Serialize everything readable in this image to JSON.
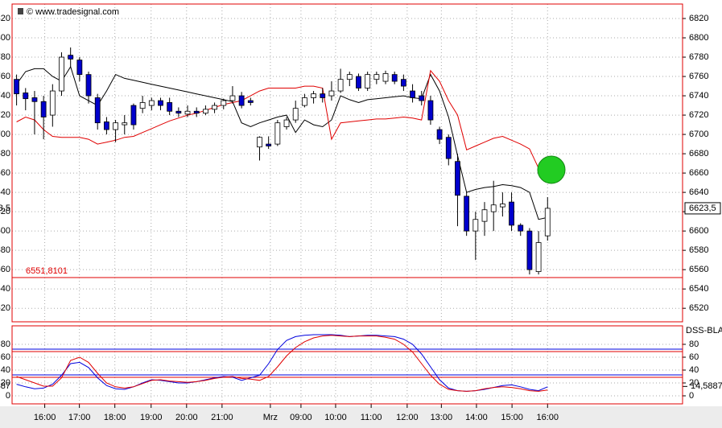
{
  "chart_data": [
    {
      "type": "candlestick",
      "watermark": "© www.tradesignal.com",
      "xlim": [
        -0.5,
        74
      ],
      "ylim": [
        6506,
        6835
      ],
      "yticks": [
        6520,
        6540,
        6560,
        6580,
        6600,
        6620,
        6640,
        6660,
        6680,
        6700,
        6720,
        6740,
        6760,
        6780,
        6800,
        6820
      ],
      "xticks": [
        {
          "value": 3.13,
          "label": "16:00"
        },
        {
          "value": 6.98,
          "label": "17:00"
        },
        {
          "value": 10.92,
          "label": "18:00"
        },
        {
          "value": 14.95,
          "label": "19:00"
        },
        {
          "value": 18.89,
          "label": "20:00"
        },
        {
          "value": 22.83,
          "label": "21:00"
        },
        {
          "value": 28.2,
          "label": "Mrz"
        },
        {
          "value": 31.6,
          "label": "09:00"
        },
        {
          "value": 35.45,
          "label": "10:00"
        },
        {
          "value": 39.4,
          "label": "11:00"
        },
        {
          "value": 43.4,
          "label": "12:00"
        },
        {
          "value": 47.2,
          "label": "13:00"
        },
        {
          "value": 51.1,
          "label": "14:00"
        },
        {
          "value": 55.05,
          "label": "15:00"
        },
        {
          "value": 59,
          "label": "16:00"
        }
      ],
      "grid": true,
      "up_color": "#ffffff",
      "down_color": "#0000cc",
      "open": [
        6757,
        6743,
        6738,
        6734,
        6720,
        6745,
        6782,
        6777,
        6762,
        6738,
        6713,
        6705,
        6710,
        6730,
        6727,
        6730,
        6735,
        6733,
        6724,
        6721,
        6724,
        6722,
        6726,
        6730,
        6735,
        6740,
        6735,
        6687,
        6690,
        6690,
        6708,
        6715,
        6730,
        6738,
        6742,
        6740,
        6745,
        6757,
        6760,
        6748,
        6757,
        6755,
        6762,
        6757,
        6745,
        6740,
        6735,
        6705,
        6697,
        6672,
        6636,
        6600,
        6610,
        6620,
        6625,
        6630,
        6606,
        6600,
        6558,
        6595
      ],
      "high": [
        6762,
        6748,
        6745,
        6740,
        6752,
        6785,
        6790,
        6780,
        6765,
        6742,
        6718,
        6715,
        6720,
        6732,
        6740,
        6738,
        6738,
        6738,
        6728,
        6730,
        6728,
        6730,
        6733,
        6737,
        6750,
        6744,
        6738,
        6698,
        6698,
        6715,
        6718,
        6735,
        6742,
        6745,
        6748,
        6755,
        6768,
        6765,
        6763,
        6765,
        6765,
        6766,
        6765,
        6762,
        6752,
        6745,
        6740,
        6708,
        6700,
        6680,
        6640,
        6620,
        6630,
        6652,
        6640,
        6640,
        6608,
        6603,
        6600,
        6635
      ],
      "low": [
        6730,
        6725,
        6700,
        6695,
        6708,
        6740,
        6770,
        6755,
        6732,
        6705,
        6700,
        6692,
        6700,
        6705,
        6722,
        6725,
        6725,
        6720,
        6718,
        6718,
        6718,
        6720,
        6722,
        6726,
        6732,
        6727,
        6730,
        6673,
        6685,
        6688,
        6705,
        6712,
        6728,
        6732,
        6733,
        6735,
        6743,
        6750,
        6745,
        6745,
        6752,
        6752,
        6752,
        6745,
        6733,
        6730,
        6710,
        6690,
        6668,
        6605,
        6595,
        6570,
        6595,
        6600,
        6615,
        6600,
        6595,
        6555,
        6555,
        6590
      ],
      "close": [
        6742,
        6737,
        6734,
        6718,
        6745,
        6780,
        6778,
        6762,
        6740,
        6712,
        6705,
        6712,
        6712,
        6710,
        6733,
        6735,
        6730,
        6724,
        6722,
        6724,
        6722,
        6726,
        6730,
        6735,
        6740,
        6730,
        6733,
        6697,
        6688,
        6712,
        6715,
        6727,
        6738,
        6742,
        6738,
        6745,
        6757,
        6762,
        6748,
        6762,
        6762,
        6763,
        6755,
        6750,
        6738,
        6735,
        6715,
        6695,
        6675,
        6637,
        6600,
        6612,
        6622,
        6627,
        6628,
        6606,
        6600,
        6560,
        6588,
        6623.5
      ],
      "series": [
        {
          "color": "#000000",
          "values": [
            6752,
            6765,
            6768,
            6768,
            6760,
            6755,
            6770,
            6740,
            6735,
            6730,
            6745,
            6762,
            6758,
            6756,
            6754,
            6752,
            6750,
            6748,
            6746,
            6744,
            6742,
            6740,
            6738,
            6736,
            6734,
            6712,
            6708,
            6712,
            6715,
            6718,
            6720,
            6702,
            6715,
            6710,
            6708,
            6715,
            6740,
            6736,
            6733,
            6736,
            6737,
            6738,
            6739,
            6740,
            6738,
            6737,
            6762,
            6745,
            6718,
            6678,
            6640,
            6643,
            6645,
            6646,
            6648,
            6647,
            6645,
            6640,
            6612,
            6614
          ]
        },
        {
          "color": "#e00000",
          "values": [
            6713,
            6718,
            6715,
            6705,
            6698,
            6697,
            6697,
            6697,
            6695,
            6690,
            6692,
            6694,
            6697,
            6698,
            6702,
            6706,
            6710,
            6714,
            6717,
            6720,
            6722,
            6725,
            6728,
            6731,
            6733,
            6735,
            6740,
            6745,
            6748,
            6748,
            6748,
            6748,
            6750,
            6750,
            6748,
            6695,
            6712,
            6713,
            6714,
            6715,
            6716,
            6716,
            6717,
            6718,
            6717,
            6715,
            6766,
            6755,
            6735,
            6720,
            6684,
            6688,
            6692,
            6696,
            6698,
            6694,
            6690,
            6685,
            6665,
            null
          ]
        }
      ],
      "hline": {
        "value": 6551.8101,
        "label": "6551,8101",
        "color": "#e00000"
      },
      "last": {
        "value": 6623.5,
        "label": "6623,5"
      }
    },
    {
      "type": "line",
      "title": "DSS-BLA",
      "xlim": [
        -0.5,
        74
      ],
      "ylim": [
        -12.5,
        108.75
      ],
      "yticks": [
        0,
        20,
        40,
        60,
        80
      ],
      "levels": [
        70,
        30
      ],
      "series": [
        {
          "color": "#0000dd",
          "values": [
            18,
            14,
            11,
            12,
            18,
            32,
            50,
            52,
            44,
            28,
            16,
            11,
            10,
            14,
            20,
            25,
            24,
            22,
            20,
            20,
            22,
            25,
            28,
            30,
            29,
            24,
            28,
            32,
            50,
            72,
            86,
            92,
            94,
            95,
            95,
            95,
            94,
            92,
            93,
            94,
            94,
            93,
            92,
            88,
            80,
            65,
            45,
            25,
            12,
            8,
            7,
            8,
            10,
            13,
            16,
            17,
            14,
            10,
            8,
            14
          ]
        },
        {
          "color": "#e00000",
          "values": [
            30,
            25,
            20,
            15,
            15,
            28,
            55,
            60,
            52,
            35,
            20,
            14,
            12,
            14,
            19,
            24,
            25,
            23,
            22,
            21,
            22,
            24,
            27,
            29,
            30,
            27,
            26,
            24,
            30,
            45,
            62,
            75,
            84,
            90,
            93,
            94,
            93,
            92,
            93,
            93,
            93,
            91,
            88,
            80,
            68,
            50,
            32,
            18,
            10,
            8,
            7,
            8,
            11,
            13,
            14,
            13,
            11,
            8,
            7,
            9
          ]
        }
      ],
      "last": {
        "value": 14.5887,
        "label": "14,5887"
      }
    }
  ]
}
